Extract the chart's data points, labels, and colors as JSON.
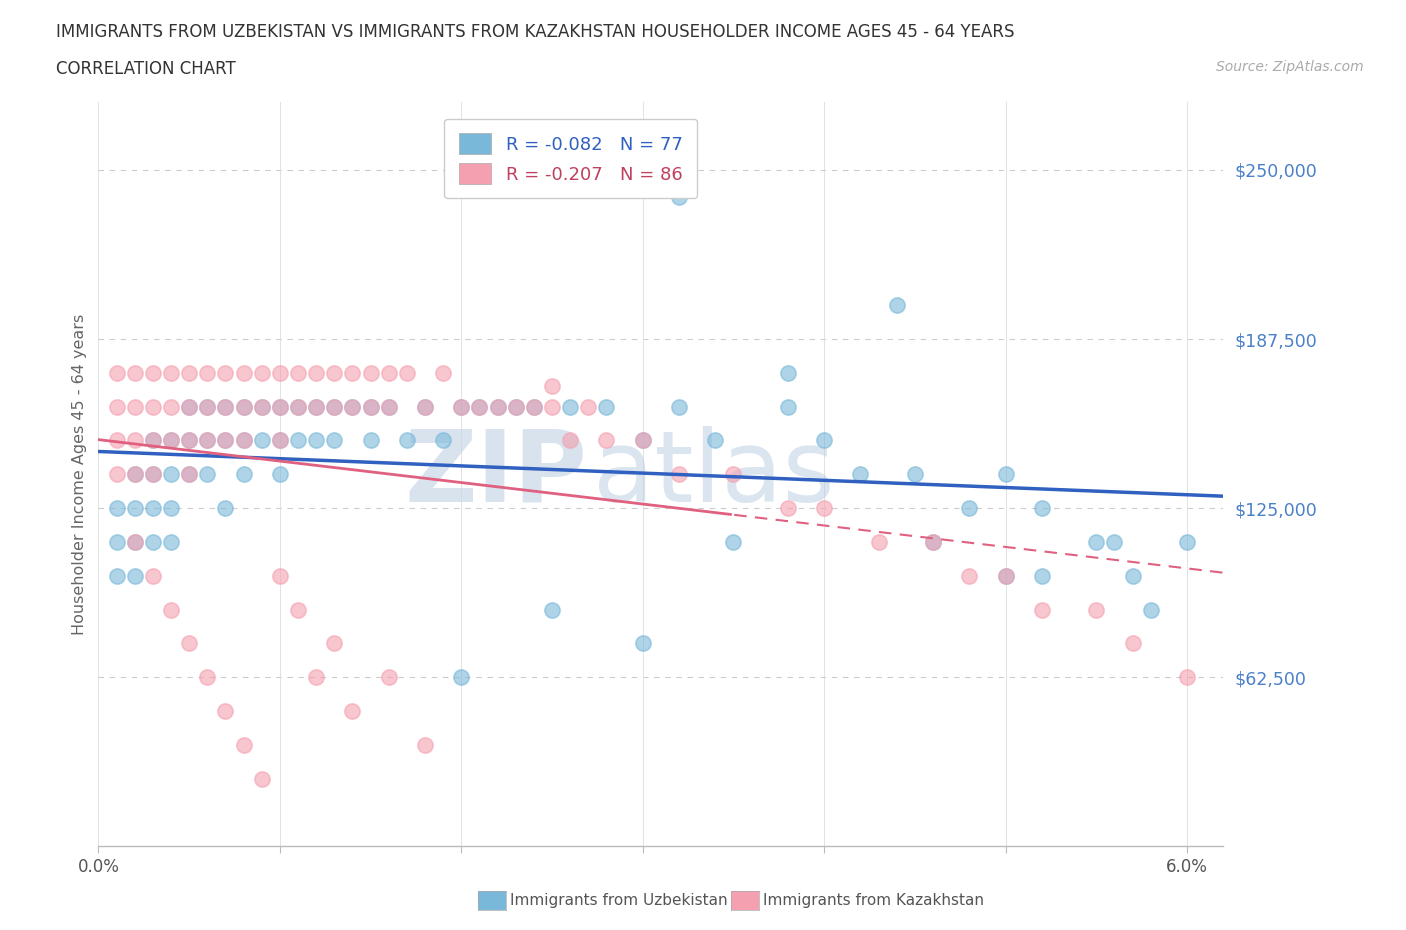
{
  "title_line1": "IMMIGRANTS FROM UZBEKISTAN VS IMMIGRANTS FROM KAZAKHSTAN HOUSEHOLDER INCOME AGES 45 - 64 YEARS",
  "title_line2": "CORRELATION CHART",
  "source_text": "Source: ZipAtlas.com",
  "ylabel": "Householder Income Ages 45 - 64 years",
  "xlim": [
    0.0,
    0.062
  ],
  "ylim": [
    0,
    275000
  ],
  "yticks": [
    0,
    62500,
    125000,
    187500,
    250000
  ],
  "ytick_labels": [
    "",
    "$62,500",
    "$125,000",
    "$187,500",
    "$250,000"
  ],
  "xticks": [
    0.0,
    0.01,
    0.02,
    0.03,
    0.04,
    0.05,
    0.06
  ],
  "uzbekistan_color": "#7ab8d9",
  "kazakhstan_color": "#f4a0b0",
  "trend_uzb_color": "#3060c0",
  "trend_kaz_color": "#e06080",
  "uzbekistan_R": -0.082,
  "uzbekistan_N": 77,
  "kazakhstan_R": -0.207,
  "kazakhstan_N": 86,
  "legend_label_uzbekistan": "Immigrants from Uzbekistan",
  "legend_label_kazakhstan": "Immigrants from Kazakhstan",
  "watermark_zip": "ZIP",
  "watermark_atlas": "atlas",
  "uzb_x": [
    0.001,
    0.001,
    0.001,
    0.002,
    0.002,
    0.002,
    0.002,
    0.003,
    0.003,
    0.003,
    0.003,
    0.004,
    0.004,
    0.004,
    0.004,
    0.005,
    0.005,
    0.005,
    0.006,
    0.006,
    0.006,
    0.007,
    0.007,
    0.007,
    0.008,
    0.008,
    0.008,
    0.009,
    0.009,
    0.01,
    0.01,
    0.01,
    0.011,
    0.011,
    0.012,
    0.012,
    0.013,
    0.013,
    0.014,
    0.015,
    0.015,
    0.016,
    0.017,
    0.018,
    0.019,
    0.02,
    0.021,
    0.022,
    0.023,
    0.024,
    0.026,
    0.028,
    0.03,
    0.032,
    0.034,
    0.038,
    0.04,
    0.042,
    0.045,
    0.048,
    0.05,
    0.052,
    0.055,
    0.032,
    0.044,
    0.038,
    0.056,
    0.052,
    0.06,
    0.057,
    0.046,
    0.05,
    0.058,
    0.035,
    0.03,
    0.025,
    0.02
  ],
  "uzb_y": [
    125000,
    112500,
    100000,
    137500,
    125000,
    112500,
    100000,
    150000,
    137500,
    125000,
    112500,
    150000,
    137500,
    125000,
    112500,
    162500,
    150000,
    137500,
    162500,
    150000,
    137500,
    162500,
    150000,
    125000,
    162500,
    150000,
    137500,
    162500,
    150000,
    162500,
    150000,
    137500,
    162500,
    150000,
    162500,
    150000,
    162500,
    150000,
    162500,
    162500,
    150000,
    162500,
    150000,
    162500,
    150000,
    162500,
    162500,
    162500,
    162500,
    162500,
    162500,
    162500,
    150000,
    162500,
    150000,
    162500,
    150000,
    137500,
    137500,
    125000,
    137500,
    125000,
    112500,
    240000,
    200000,
    175000,
    112500,
    100000,
    112500,
    100000,
    112500,
    100000,
    87500,
    112500,
    75000,
    87500,
    62500
  ],
  "kaz_x": [
    0.001,
    0.001,
    0.001,
    0.001,
    0.002,
    0.002,
    0.002,
    0.002,
    0.003,
    0.003,
    0.003,
    0.003,
    0.004,
    0.004,
    0.004,
    0.005,
    0.005,
    0.005,
    0.005,
    0.006,
    0.006,
    0.006,
    0.007,
    0.007,
    0.007,
    0.008,
    0.008,
    0.008,
    0.009,
    0.009,
    0.01,
    0.01,
    0.01,
    0.011,
    0.011,
    0.012,
    0.012,
    0.013,
    0.013,
    0.014,
    0.014,
    0.015,
    0.015,
    0.016,
    0.016,
    0.017,
    0.018,
    0.019,
    0.02,
    0.021,
    0.022,
    0.023,
    0.024,
    0.025,
    0.026,
    0.027,
    0.028,
    0.03,
    0.032,
    0.035,
    0.038,
    0.04,
    0.043,
    0.046,
    0.048,
    0.05,
    0.052,
    0.055,
    0.057,
    0.06,
    0.002,
    0.003,
    0.004,
    0.005,
    0.006,
    0.007,
    0.008,
    0.009,
    0.01,
    0.011,
    0.012,
    0.013,
    0.014,
    0.016,
    0.018,
    0.025
  ],
  "kaz_y": [
    175000,
    162500,
    150000,
    137500,
    175000,
    162500,
    150000,
    137500,
    175000,
    162500,
    150000,
    137500,
    175000,
    162500,
    150000,
    175000,
    162500,
    150000,
    137500,
    175000,
    162500,
    150000,
    175000,
    162500,
    150000,
    175000,
    162500,
    150000,
    175000,
    162500,
    175000,
    162500,
    150000,
    175000,
    162500,
    175000,
    162500,
    175000,
    162500,
    175000,
    162500,
    175000,
    162500,
    175000,
    162500,
    175000,
    162500,
    175000,
    162500,
    162500,
    162500,
    162500,
    162500,
    162500,
    150000,
    162500,
    150000,
    150000,
    137500,
    137500,
    125000,
    125000,
    112500,
    112500,
    100000,
    100000,
    87500,
    87500,
    75000,
    62500,
    112500,
    100000,
    87500,
    75000,
    62500,
    50000,
    37500,
    25000,
    100000,
    87500,
    62500,
    75000,
    50000,
    62500,
    37500,
    170000
  ]
}
